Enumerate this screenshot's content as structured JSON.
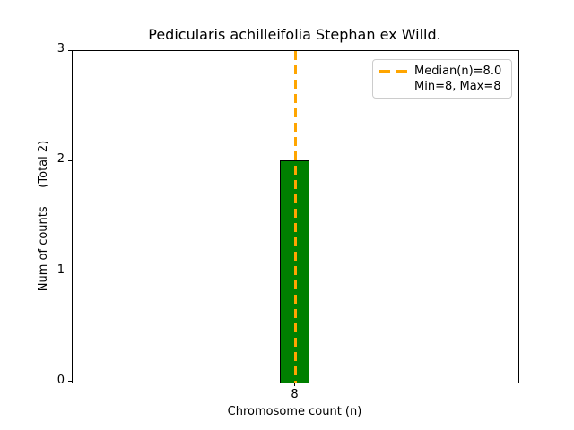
{
  "chart_data": {
    "type": "bar",
    "title": "Pedicularis achilleifolia Stephan ex Willd.",
    "xlabel": "Chromosome count (n)",
    "ylabel": "Num of counts     (Total 2)",
    "categories": [
      "8"
    ],
    "values": [
      2
    ],
    "total_counts": 2,
    "ylim": [
      0,
      3
    ],
    "yticks": [
      "0",
      "1",
      "2",
      "3"
    ],
    "xticks": [
      "8"
    ],
    "median_n": 8.0,
    "min_n": 8,
    "max_n": 8,
    "grid": false,
    "legend": {
      "position": "upper right",
      "entries": [
        "Median(n)=8.0",
        "Min=8, Max=8"
      ]
    },
    "colors": {
      "bar_fill": "#008000",
      "bar_edge": "#000000",
      "median_line": "#FFA500",
      "legend_border": "#cccccc",
      "text": "#000000",
      "background": "#ffffff"
    }
  }
}
